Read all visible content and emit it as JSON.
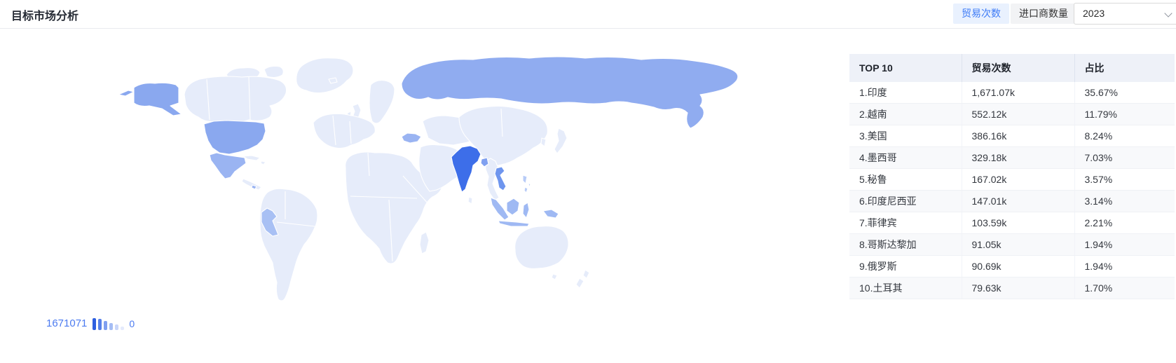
{
  "page": {
    "title": "目标市场分析"
  },
  "controls": {
    "metric_tabs": [
      {
        "label": "贸易次数",
        "active": true
      },
      {
        "label": "进口商数量",
        "active": false
      }
    ],
    "year_select": {
      "value": "2023",
      "icon": "chevron-down-icon"
    }
  },
  "colors": {
    "accent": "#3d7bf7",
    "accent_bg": "#e9f1fe",
    "legend_text": "#4c7bf0"
  },
  "map": {
    "legend": {
      "max": "1671071",
      "min": "0",
      "bars": [
        {
          "color": "#2e5fe0",
          "h": 17
        },
        {
          "color": "#567fe9",
          "h": 16
        },
        {
          "color": "#7f9ff0",
          "h": 13
        },
        {
          "color": "#a5bdf4",
          "h": 10
        },
        {
          "color": "#c9d6f9",
          "h": 8
        },
        {
          "color": "#e4eafc",
          "h": 5
        }
      ]
    },
    "colors": {
      "default": "#e6ecfa",
      "india": "#3d6ee9",
      "vietnam": "#6e95ee",
      "usa": "#8aa8ef",
      "mexico": "#9ab4f2",
      "peru": "#a8c0f4",
      "indonesia": "#9fb9f3",
      "philippines": "#b7cbf7",
      "costa_rica": "#9ab4f2",
      "russia": "#90acf0",
      "turkey": "#9ab4f2",
      "bangladesh": "#7fa0f0"
    }
  },
  "chart_data": {
    "type": "heatmap",
    "subtype": "world-choropleth",
    "title": "目标市场分析",
    "legend_range": [
      0,
      1671071
    ],
    "categories": [
      "印度",
      "越南",
      "美国",
      "墨西哥",
      "秘鲁",
      "印度尼西亚",
      "菲律宾",
      "哥斯达黎加",
      "俄罗斯",
      "土耳其"
    ],
    "series": [
      {
        "name": "贸易次数",
        "values": [
          "1,671.07k",
          "552.12k",
          "386.16k",
          "329.18k",
          "167.02k",
          "147.01k",
          "103.59k",
          "91.05k",
          "90.69k",
          "79.63k"
        ]
      },
      {
        "name": "占比",
        "values": [
          "35.67%",
          "11.79%",
          "8.24%",
          "7.03%",
          "3.57%",
          "3.14%",
          "2.21%",
          "1.94%",
          "1.94%",
          "1.70%"
        ]
      }
    ]
  },
  "table": {
    "columns": [
      "TOP 10",
      "贸易次数",
      "占比"
    ],
    "rows": [
      {
        "name": "1.印度",
        "value": "1,671.07k",
        "share": "35.67%"
      },
      {
        "name": "2.越南",
        "value": "552.12k",
        "share": "11.79%"
      },
      {
        "name": "3.美国",
        "value": "386.16k",
        "share": "8.24%"
      },
      {
        "name": "4.墨西哥",
        "value": "329.18k",
        "share": "7.03%"
      },
      {
        "name": "5.秘鲁",
        "value": "167.02k",
        "share": "3.57%"
      },
      {
        "name": "6.印度尼西亚",
        "value": "147.01k",
        "share": "3.14%"
      },
      {
        "name": "7.菲律宾",
        "value": "103.59k",
        "share": "2.21%"
      },
      {
        "name": "8.哥斯达黎加",
        "value": "91.05k",
        "share": "1.94%"
      },
      {
        "name": "9.俄罗斯",
        "value": "90.69k",
        "share": "1.94%"
      },
      {
        "name": "10.土耳其",
        "value": "79.63k",
        "share": "1.70%"
      }
    ]
  }
}
